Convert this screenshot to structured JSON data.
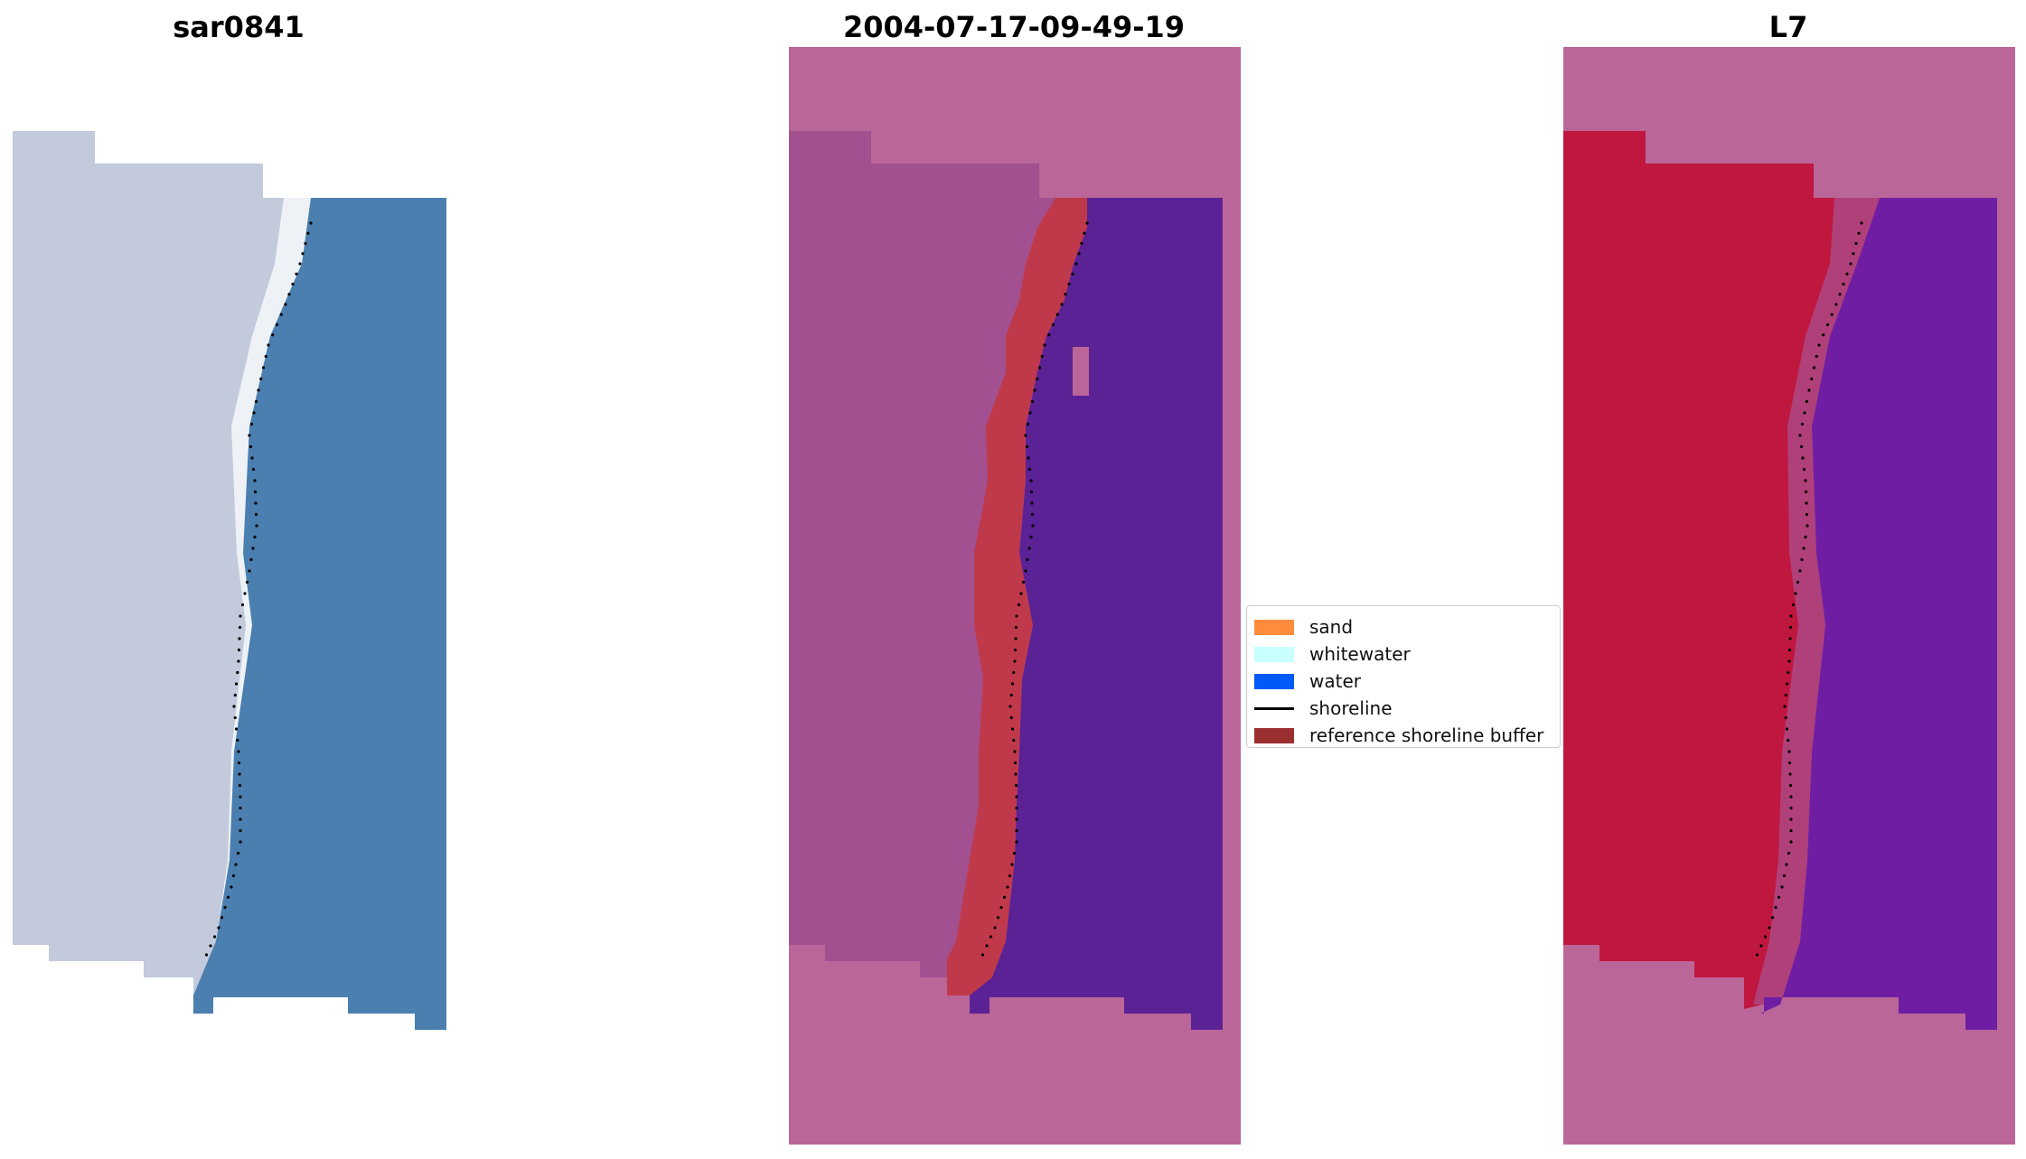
{
  "panels": [
    {
      "id": "rgb",
      "title": "sar0841"
    },
    {
      "id": "classified",
      "title": "2004-07-17-09-49-19"
    },
    {
      "id": "mndwi",
      "title": "L7"
    }
  ],
  "legend": [
    {
      "label": "sand",
      "color": "#ff8c3c",
      "kind": "patch"
    },
    {
      "label": "whitewater",
      "color": "#c8ffff",
      "kind": "patch"
    },
    {
      "label": "water",
      "color": "#005af5",
      "kind": "patch"
    },
    {
      "label": "shoreline",
      "color": "#000000",
      "kind": "line"
    },
    {
      "label": "reference shoreline buffer",
      "color": "#9b2f2f",
      "kind": "patch"
    }
  ],
  "colors": {
    "land_rgb": "#c2cadb",
    "sea_rgb": "#4a7fb0",
    "nodata_overlay": "#bb6698",
    "land_classified": "#a2508f",
    "buffer_classified": "#c0394b",
    "water_classified": "#5a2295",
    "land_index": "#c0173f",
    "water_index": "#6f1ea3",
    "shoreline": "#000000"
  }
}
